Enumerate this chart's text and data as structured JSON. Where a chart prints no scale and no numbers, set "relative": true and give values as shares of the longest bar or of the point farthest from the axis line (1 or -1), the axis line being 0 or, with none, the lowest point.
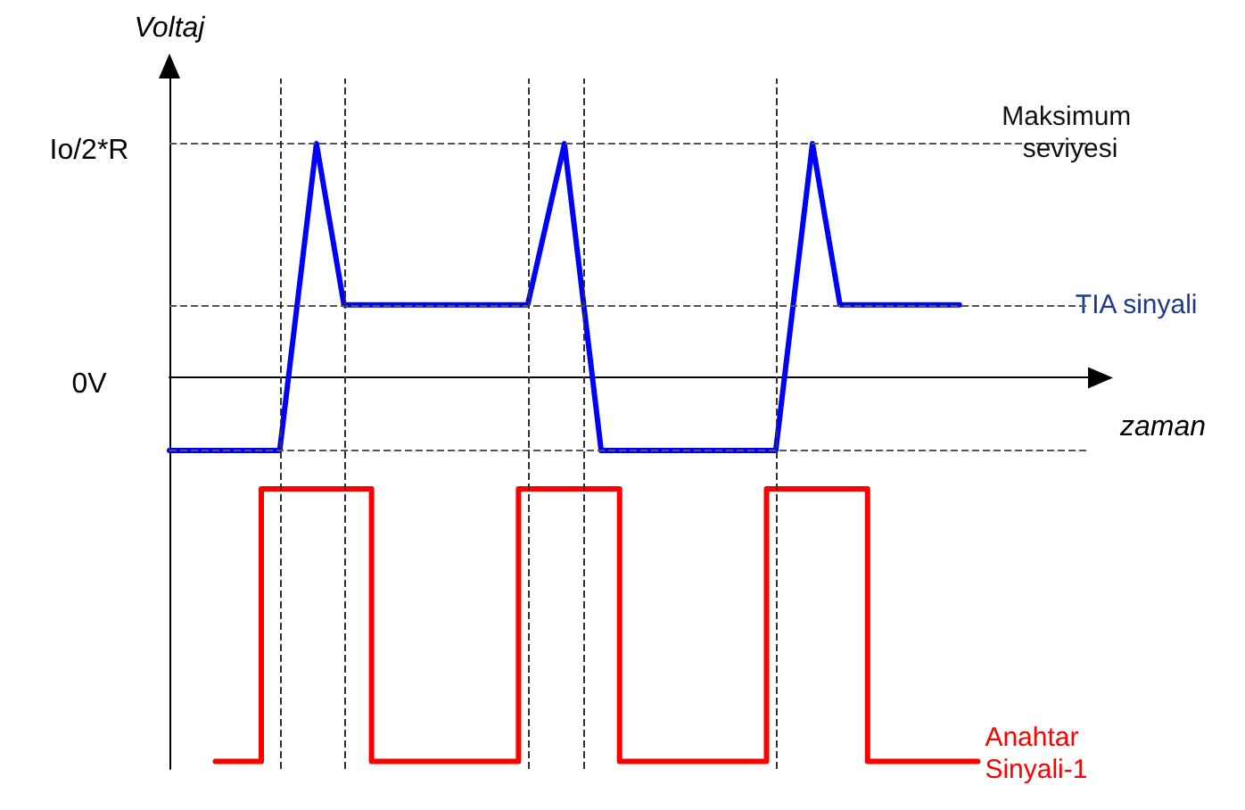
{
  "chart_data": {
    "type": "line",
    "relative": true,
    "xlabel": "zaman",
    "ylabel": "Voltaj",
    "categories": [
      null,
      null,
      null,
      null,
      null,
      null,
      null,
      null,
      null,
      null,
      null,
      null,
      null,
      null,
      null,
      null,
      null,
      null,
      null,
      null,
      null,
      null,
      null,
      null,
      null,
      null,
      null,
      null,
      null,
      null,
      null,
      null,
      null,
      null,
      null,
      null,
      null,
      null,
      null,
      null,
      null,
      null,
      null,
      null,
      null,
      null,
      null,
      null,
      null,
      null,
      null,
      null,
      null,
      null,
      null,
      null,
      null,
      null,
      null,
      null,
      null,
      null,
      null,
      null,
      null,
      null,
      null,
      null,
      null,
      null,
      null,
      null,
      null,
      null,
      null,
      null,
      null,
      null,
      null,
      null,
      null,
      null,
      null,
      null,
      null,
      null,
      null,
      null,
      null,
      null,
      null,
      null,
      null,
      null,
      null,
      null,
      null,
      null,
      null,
      null,
      null
    ],
    "grid": false,
    "legend": false,
    "marker": "none",
    "line_style": "solid",
    "series": [
      {
        "name": "TIA sinyali",
        "color": "#0000ff",
        "values": [
          -0.19,
          null,
          null,
          null,
          null,
          null,
          null,
          null,
          null,
          null,
          null,
          null,
          -0.19,
          null,
          null,
          null,
          0.61,
          null,
          null,
          0.19,
          null,
          null,
          null,
          null,
          null,
          null,
          null,
          null,
          null,
          null,
          null,
          null,
          null,
          null,
          null,
          null,
          null,
          null,
          null,
          0.19,
          null,
          null,
          null,
          0.61,
          null,
          null,
          null,
          -0.19,
          null,
          null,
          null,
          null,
          null,
          null,
          null,
          null,
          null,
          null,
          null,
          null,
          null,
          null,
          null,
          null,
          null,
          null,
          -0.19,
          null,
          null,
          null,
          0.61,
          null,
          null,
          0.19,
          null,
          null,
          null,
          null,
          null,
          null,
          null,
          null,
          null,
          null,
          null,
          null,
          0.19,
          null,
          null,
          null,
          null,
          null,
          null,
          null,
          null,
          null,
          null,
          null,
          null,
          null,
          null
        ]
      },
      {
        "name": "Anahtar Sinyali-1",
        "type": "step",
        "color": "#ff0000",
        "values": [
          null,
          null,
          null,
          null,
          null,
          -1,
          -1,
          -1,
          -1,
          -1,
          -0.29,
          -0.29,
          -0.29,
          -0.29,
          -0.29,
          -0.29,
          -0.29,
          -0.29,
          -0.29,
          -0.29,
          -0.29,
          -0.29,
          -1,
          -1,
          -1,
          -1,
          -1,
          -1,
          -1,
          -1,
          -1,
          -1,
          -1,
          -1,
          -1,
          -1,
          -1,
          -1,
          -0.29,
          -0.29,
          -0.29,
          -0.29,
          -0.29,
          -0.29,
          -0.29,
          -0.29,
          -0.29,
          -0.29,
          -0.29,
          -1,
          -1,
          -1,
          -1,
          -1,
          -1,
          -1,
          -1,
          -1,
          -1,
          -1,
          -1,
          -1,
          -1,
          -1,
          -1,
          -0.29,
          -0.29,
          -0.29,
          -0.29,
          -0.29,
          -0.29,
          -0.29,
          -0.29,
          -0.29,
          -0.29,
          -0.29,
          -1,
          -1,
          -1,
          -1,
          -1,
          -1,
          -1,
          -1,
          -1,
          -1,
          -1,
          -1,
          -1,
          null,
          null,
          null,
          null,
          null,
          null,
          null,
          null,
          null,
          null,
          null,
          null
        ]
      }
    ],
    "ref_lines": [
      {
        "axis": "y",
        "value": 0.61,
        "label": "Maksimum seviyesi",
        "line_style": "dashed",
        "color": "#555555"
      },
      {
        "axis": "y",
        "value": 0.19,
        "line_style": "dashed",
        "color": "#555555"
      },
      {
        "axis": "y",
        "value": -0.19,
        "line_style": "dashed",
        "color": "#555555"
      }
    ],
    "annotations": [
      "Io/2*R",
      "0V"
    ]
  }
}
